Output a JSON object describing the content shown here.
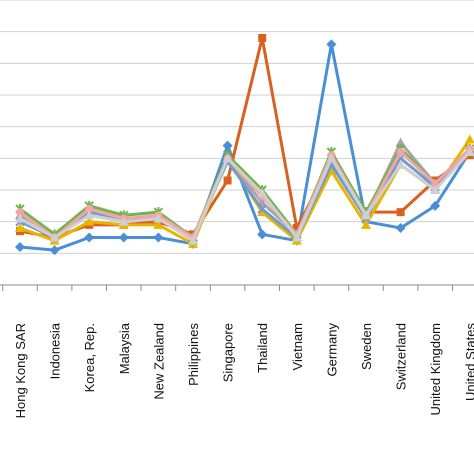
{
  "chart_data": {
    "type": "line",
    "categories": [
      "Hong Kong SAR",
      "Indonesia",
      "Korea, Rep.",
      "Malaysia",
      "New Zealand",
      "Philippines",
      "Singapore",
      "Thailand",
      "Vietnam",
      "Germany",
      "Sweden",
      "Switzerland",
      "United Kingdom",
      "United States"
    ],
    "visible_categories_start_index": 0,
    "ylim": [
      0,
      9
    ],
    "grid": true,
    "legend": "none",
    "series": [
      {
        "color": "#4a8fd6",
        "marker": "diamond",
        "values": [
          1.2,
          1.1,
          1.5,
          1.5,
          1.5,
          1.3,
          4.4,
          1.6,
          1.4,
          7.6,
          2.0,
          1.8,
          2.5,
          4.2
        ]
      },
      {
        "color": "#d9601f",
        "marker": "square",
        "values": [
          1.7,
          1.5,
          1.9,
          1.9,
          2.0,
          1.6,
          3.3,
          7.8,
          1.8,
          3.9,
          2.3,
          2.3,
          3.3,
          4.1
        ]
      },
      {
        "color": "#a6a6a6",
        "marker": "triangle",
        "values": [
          2.2,
          1.6,
          2.3,
          2.1,
          2.1,
          1.5,
          4.0,
          2.6,
          1.6,
          4.0,
          2.2,
          4.5,
          3.2,
          4.3
        ]
      },
      {
        "color": "#e8b400",
        "marker": "triangle",
        "values": [
          1.8,
          1.4,
          2.0,
          1.9,
          1.9,
          1.3,
          4.0,
          2.3,
          1.4,
          3.6,
          1.9,
          3.8,
          3.0,
          4.6
        ]
      },
      {
        "color": "#6e9bd1",
        "marker": "x",
        "values": [
          2.0,
          1.5,
          2.3,
          2.1,
          2.1,
          1.5,
          3.9,
          2.4,
          1.5,
          3.8,
          2.1,
          4.0,
          3.1,
          4.2
        ]
      },
      {
        "color": "#72b34a",
        "marker": "star",
        "values": [
          2.4,
          1.6,
          2.5,
          2.2,
          2.3,
          1.5,
          4.1,
          3.0,
          1.6,
          4.2,
          2.3,
          4.3,
          3.2,
          4.3
        ]
      },
      {
        "color": "#f4a3a8",
        "marker": "circle",
        "values": [
          2.3,
          1.5,
          2.4,
          2.1,
          2.2,
          1.5,
          4.0,
          2.8,
          1.6,
          4.1,
          2.2,
          4.2,
          3.2,
          4.3
        ]
      },
      {
        "color": "#cfcfcf",
        "marker": "triangle",
        "values": [
          2.1,
          1.5,
          2.2,
          2.0,
          2.1,
          1.4,
          4.0,
          2.9,
          1.5,
          4.0,
          2.2,
          3.8,
          3.0,
          4.2
        ]
      }
    ]
  }
}
